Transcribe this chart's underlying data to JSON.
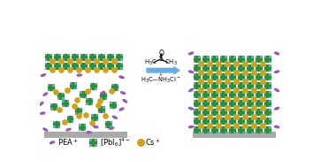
{
  "bg_color": "#ffffff",
  "teal_color": "#6DC5BE",
  "teal_dark": "#2E8B7A",
  "green_dot_color": "#2E8B3A",
  "gold_color": "#D4A017",
  "purple_color": "#9B59B6",
  "gray_color": "#AAAAAA",
  "arrow_color": "#6AADE4",
  "figsize": [
    3.54,
    1.89
  ],
  "dpi": 100
}
